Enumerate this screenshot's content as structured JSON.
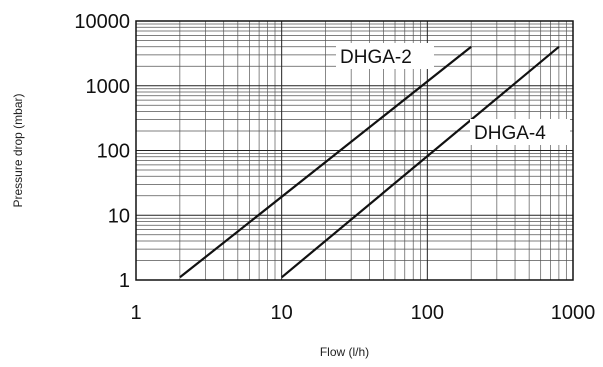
{
  "chart_data": {
    "type": "line",
    "xlabel": "Flow (l/h)",
    "ylabel": "Pressure drop (mbar)",
    "xscale": "log",
    "yscale": "log",
    "xlim": [
      1,
      1000
    ],
    "ylim": [
      1,
      10000
    ],
    "x_ticks": [
      "1",
      "10",
      "100",
      "1000"
    ],
    "y_ticks": [
      "1",
      "10",
      "100",
      "1000",
      "10000"
    ],
    "grid": true,
    "series": [
      {
        "name": "DHGA-2",
        "x": [
          2,
          200
        ],
        "y": [
          1.1,
          4000
        ]
      },
      {
        "name": "DHGA-4",
        "x": [
          10,
          800
        ],
        "y": [
          1.1,
          4000
        ]
      }
    ]
  }
}
